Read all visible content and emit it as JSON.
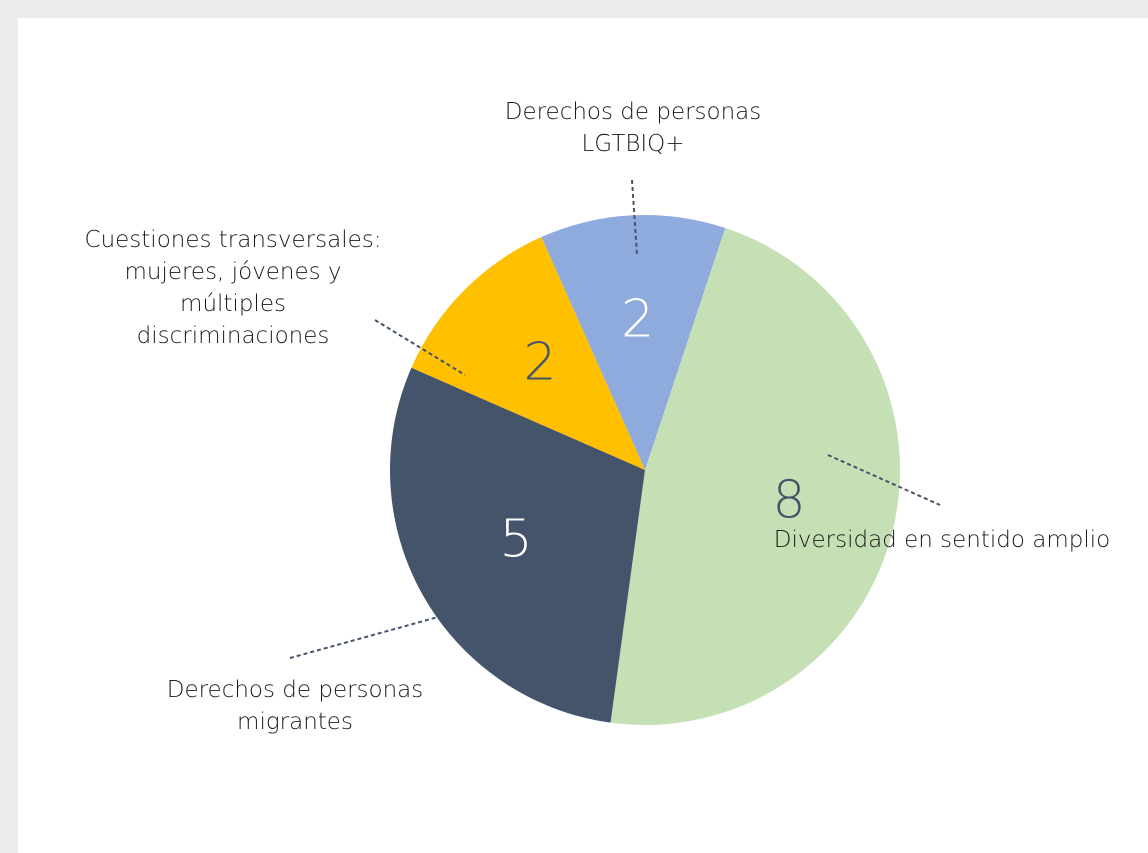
{
  "chart_data": {
    "type": "pie",
    "categories": [
      "Derechos de personas LGTBIQ+",
      "Diversidad en sentido amplio",
      "Derechos de personas migrantes",
      "Cuestiones transversales: mujeres, jóvenes y múltiples discriminaciones"
    ],
    "values": [
      2,
      8,
      5,
      2
    ],
    "colors": [
      "#8faadc",
      "#c5e0b4",
      "#44546a",
      "#ffc000"
    ]
  }
}
